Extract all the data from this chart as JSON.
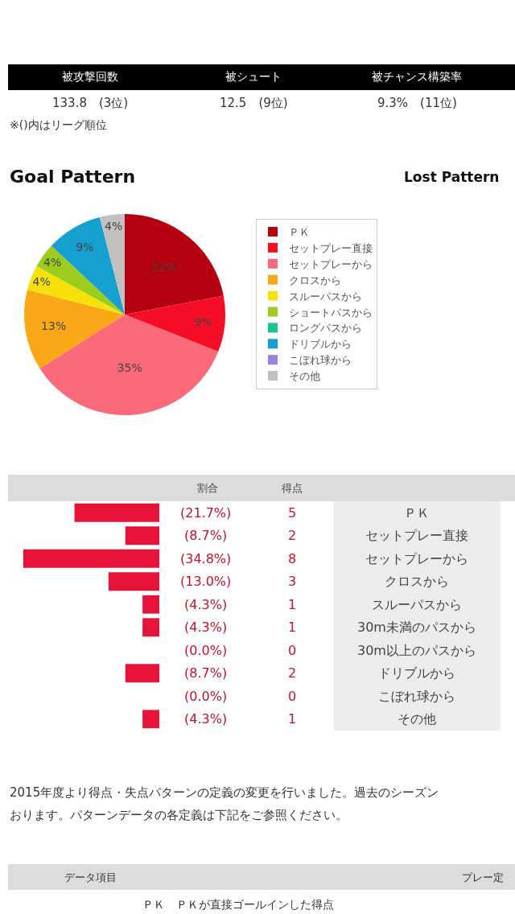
{
  "chart_data": [
    {
      "type": "other",
      "annotations": [
        "被攻撃回数",
        "被シュート",
        "被チャンス構築率",
        "133.8　(3位)",
        "12.5　(9位)",
        "9.3%　(11位)",
        "※()内はリーグ順位",
        "Lost Pattern"
      ]
    },
    {
      "type": "pie",
      "title": "Goal Pattern",
      "legend": "right",
      "categories": [
        "ＰＫ",
        "セットプレー直接",
        "セットプレーから",
        "クロスから",
        "スルーパスから",
        "ショートパスから",
        "ロングパスから",
        "ドリブルから",
        "こぼれ球から",
        "その他"
      ],
      "values": [
        22,
        9,
        35,
        13,
        4,
        4,
        0,
        9,
        0,
        4
      ],
      "value_labels": [
        "22%",
        "9%",
        "35%",
        "13%",
        "4%",
        "4%",
        null,
        "9%",
        null,
        "4%"
      ],
      "colors": [
        "#b5000f",
        "#f50e26",
        "#fb6a78",
        "#fba817",
        "#f7e10a",
        "#9ccc1e",
        "#17c496",
        "#16a0cf",
        "#9a83dc",
        "#c0c0c0"
      ]
    },
    {
      "type": "bar",
      "orientation": "horizontal",
      "color": "#e8133a",
      "categories": [
        "ＰＫ",
        "セットプレー直接",
        "セットプレーから",
        "クロスから",
        "スルーパスから",
        "30m未満のパスから",
        "30m以上のパスから",
        "ドリブルから",
        "こぼれ球から",
        "その他"
      ],
      "values": [
        21.7,
        8.7,
        34.8,
        13.0,
        4.3,
        4.3,
        0.0,
        8.7,
        0.0,
        4.3
      ],
      "value_labels": [
        "(21.7%)",
        "(8.7%)",
        "(34.8%)",
        "(13.0%)",
        "(4.3%)",
        "(4.3%)",
        "(0.0%)",
        "(8.7%)",
        "(0.0%)",
        "(4.3%)"
      ],
      "annotations": [
        "割合",
        "得点",
        "5",
        "2",
        "8",
        "3",
        "1",
        "1",
        "0",
        "2",
        "0",
        "1"
      ]
    },
    {
      "type": "other",
      "annotations": [
        "2015年度より得点・失点パターンの定義の変更を行いました。過去のシーズン",
        "おります。パターンデータの各定義は下記をご参照ください。",
        "データ項目",
        "プレー定",
        "ＰＫ　ＰＫが直接ゴールインした得点"
      ]
    }
  ]
}
